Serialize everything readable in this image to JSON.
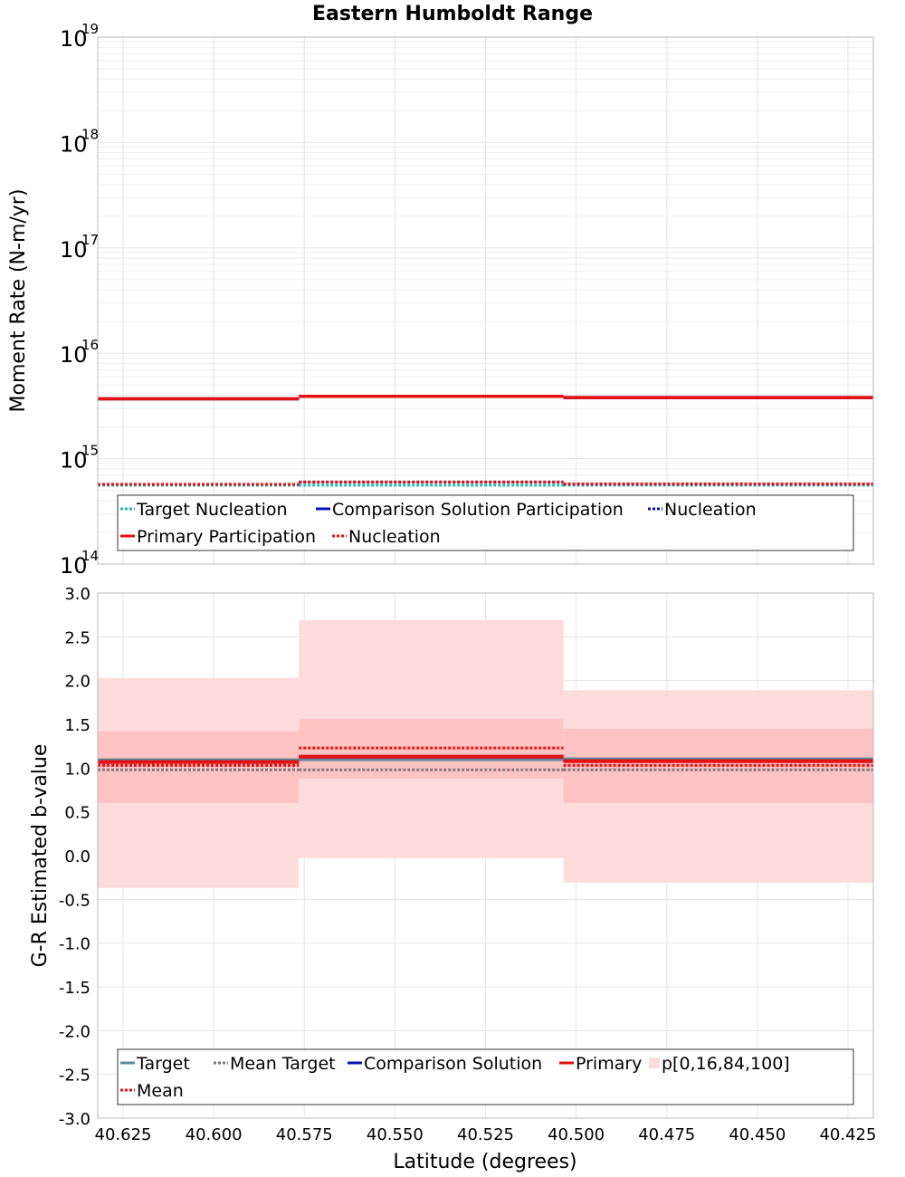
{
  "title": "Eastern Humboldt Range",
  "xlabel": "Latitude (degrees)",
  "x_ticks": [
    40.625,
    40.6,
    40.575,
    40.55,
    40.525,
    40.5,
    40.475,
    40.45,
    40.425
  ],
  "x_tick_labels": [
    "40.625",
    "40.600",
    "40.575",
    "40.550",
    "40.525",
    "40.500",
    "40.475",
    "40.450",
    "40.425"
  ],
  "xlim": [
    40.632,
    40.418
  ],
  "bins": [
    [
      40.632,
      40.5765
    ],
    [
      40.5765,
      40.5035
    ],
    [
      40.5035,
      40.418
    ]
  ],
  "colors": {
    "target": "#1fb8b0",
    "comparison": "#0a14b4",
    "primary": "#e81010",
    "band_outer": "#ffdcdc",
    "band_inner": "#ffc3c3",
    "mean_target_b": "#7a7a7a",
    "target_b": "#5b8c95"
  },
  "chart_data": [
    {
      "type": "line",
      "ylabel": "Moment Rate (N-m/yr)",
      "yscale": "log",
      "ylim": [
        100000000000000.0,
        1e+19
      ],
      "y_tick_labels": [
        {
          "base": "10",
          "exp": "14",
          "value": 100000000000000.0
        },
        {
          "base": "10",
          "exp": "15",
          "value": 1000000000000000.0
        },
        {
          "base": "10",
          "exp": "16",
          "value": 1e+16
        },
        {
          "base": "10",
          "exp": "17",
          "value": 1e+17
        },
        {
          "base": "10",
          "exp": "18",
          "value": 1e+18
        },
        {
          "base": "10",
          "exp": "19",
          "value": 1e+19
        }
      ],
      "grid": true,
      "legend_position": "bottom",
      "series": [
        {
          "name": "Target Nucleation",
          "color_key": "target",
          "style": "dotted",
          "values": [
            560000000000000.0,
            560000000000000.0,
            560000000000000.0
          ]
        },
        {
          "name": "Comparison Solution Participation",
          "color_key": "comparison",
          "style": "solid",
          "values": [
            3700000000000000.0,
            3900000000000000.0,
            3800000000000000.0
          ]
        },
        {
          "name": "Nucleation",
          "color_key": "comparison",
          "style": "dotted",
          "values": [
            570000000000000.0,
            600000000000000.0,
            575000000000000.0
          ]
        },
        {
          "name": "Primary Participation",
          "color_key": "primary",
          "style": "solid",
          "values": [
            3700000000000000.0,
            3900000000000000.0,
            3800000000000000.0
          ]
        },
        {
          "name": "Nucleation",
          "color_key": "primary",
          "style": "dotted",
          "values": [
            570000000000000.0,
            600000000000000.0,
            575000000000000.0
          ]
        }
      ]
    },
    {
      "type": "line",
      "ylabel": "G-R Estimated b-value",
      "yscale": "linear",
      "ylim": [
        -3.0,
        3.0
      ],
      "y_ticks": [
        -3.0,
        -2.5,
        -2.0,
        -1.5,
        -1.0,
        -0.5,
        0.0,
        0.5,
        1.0,
        1.5,
        2.0,
        2.5,
        3.0
      ],
      "y_tick_labels": [
        "-3.0",
        "-2.5",
        "-2.0",
        "-1.5",
        "-1.0",
        "-0.5",
        "0.0",
        "0.5",
        "1.0",
        "1.5",
        "2.0",
        "2.5",
        "3.0"
      ],
      "grid": true,
      "legend_position": "bottom",
      "bands": {
        "name": "p[0,16,84,100]",
        "p0": [
          -0.37,
          -0.03,
          -0.31
        ],
        "p16": [
          0.6,
          0.88,
          0.6
        ],
        "p84": [
          1.42,
          1.56,
          1.45
        ],
        "p100": [
          2.03,
          2.69,
          1.89
        ]
      },
      "series": [
        {
          "name": "Target",
          "color_key": "target_b",
          "style": "solid",
          "values": [
            1.09,
            1.1,
            1.1
          ]
        },
        {
          "name": "Mean Target",
          "color_key": "mean_target_b",
          "style": "dotted",
          "values": [
            0.98,
            0.98,
            0.98
          ]
        },
        {
          "name": "Comparison Solution",
          "color_key": "comparison",
          "style": "solid",
          "values": [
            1.07,
            1.13,
            1.08
          ]
        },
        {
          "name": "Primary",
          "color_key": "primary",
          "style": "solid",
          "values": [
            1.07,
            1.13,
            1.08
          ]
        },
        {
          "name": "Mean",
          "color_key": "primary",
          "style": "dotted",
          "values": [
            1.03,
            1.23,
            1.03
          ]
        }
      ]
    }
  ]
}
